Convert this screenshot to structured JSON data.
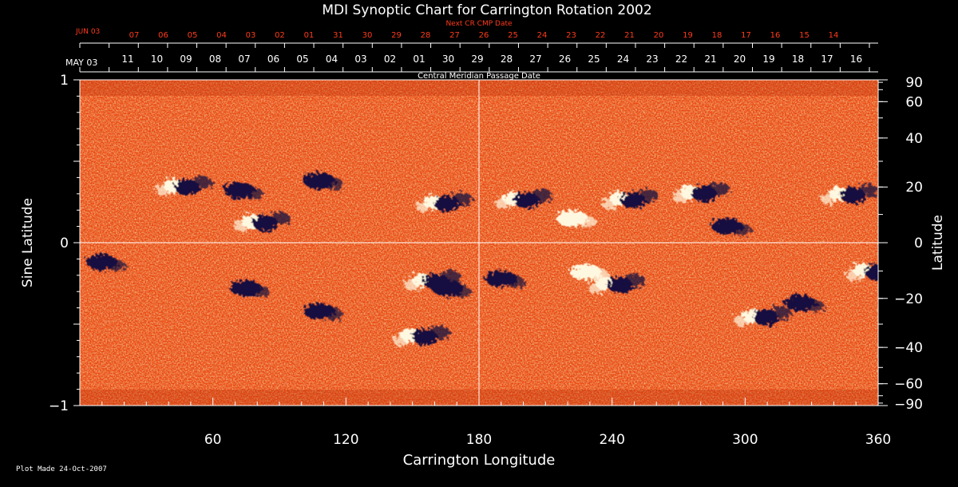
{
  "colors": {
    "background": "#000000",
    "axis": "#ffffff",
    "next_dates": "#ff3b1a",
    "field_neutral": "#f04a10",
    "field_positive": "#fff8e0",
    "field_negative": "#140a40"
  },
  "chart_data": {
    "type": "heatmap",
    "title": "MDI Synoptic Chart for Carrington Rotation 2002",
    "xlabel": "Carrington Longitude",
    "ylabel_left": "Sine Latitude",
    "ylabel_right": "Latitude",
    "top_axis_title": "Central Meridian Passage Date",
    "next_axis_title": "Next CR CMP Date",
    "xlim": [
      0,
      360
    ],
    "ylim": [
      -1,
      1
    ],
    "x_ticks": [
      60,
      120,
      180,
      240,
      300,
      360
    ],
    "y_ticks_left": [
      "1",
      "0",
      "−1"
    ],
    "y_ticks_right": [
      {
        "label": "90",
        "deg": 90
      },
      {
        "label": "60",
        "deg": 60
      },
      {
        "label": "40",
        "deg": 40
      },
      {
        "label": "20",
        "deg": 20
      },
      {
        "label": "0",
        "deg": 0
      },
      {
        "label": "−20",
        "deg": -20
      },
      {
        "label": "−40",
        "deg": -40
      },
      {
        "label": "−60",
        "deg": -60
      },
      {
        "label": "−90",
        "deg": -90
      }
    ],
    "cmp_start_label": "MAY 03",
    "cmp_dates": [
      "11",
      "10",
      "09",
      "08",
      "07",
      "06",
      "05",
      "04",
      "03",
      "02",
      "01",
      "30",
      "29",
      "28",
      "27",
      "26",
      "25",
      "24",
      "23",
      "22",
      "21",
      "20",
      "19",
      "18",
      "17",
      "16"
    ],
    "next_start_label": "JUN 03",
    "next_dates": [
      "07",
      "06",
      "05",
      "04",
      "03",
      "02",
      "01",
      "31",
      "30",
      "29",
      "28",
      "27",
      "26",
      "25",
      "24",
      "23",
      "22",
      "21",
      "20",
      "19",
      "18",
      "17",
      "16",
      "15",
      "14"
    ],
    "active_regions": [
      {
        "lon": 45,
        "sinlat": 0.35,
        "polarity": "mixed"
      },
      {
        "lon": 80,
        "sinlat": 0.13,
        "polarity": "mixed"
      },
      {
        "lon": 72,
        "sinlat": 0.32,
        "polarity": "negative"
      },
      {
        "lon": 108,
        "sinlat": 0.38,
        "polarity": "negative"
      },
      {
        "lon": 162,
        "sinlat": 0.25,
        "polarity": "mixed"
      },
      {
        "lon": 198,
        "sinlat": 0.27,
        "polarity": "mixed"
      },
      {
        "lon": 222,
        "sinlat": 0.15,
        "polarity": "positive"
      },
      {
        "lon": 246,
        "sinlat": 0.27,
        "polarity": "mixed"
      },
      {
        "lon": 278,
        "sinlat": 0.31,
        "polarity": "mixed"
      },
      {
        "lon": 292,
        "sinlat": 0.1,
        "polarity": "negative"
      },
      {
        "lon": 345,
        "sinlat": 0.3,
        "polarity": "mixed"
      },
      {
        "lon": 157,
        "sinlat": -0.23,
        "polarity": "mixed"
      },
      {
        "lon": 166,
        "sinlat": -0.28,
        "polarity": "negative"
      },
      {
        "lon": 190,
        "sinlat": -0.22,
        "polarity": "negative"
      },
      {
        "lon": 240,
        "sinlat": -0.25,
        "polarity": "mixed"
      },
      {
        "lon": 228,
        "sinlat": -0.18,
        "polarity": "positive"
      },
      {
        "lon": 75,
        "sinlat": -0.28,
        "polarity": "negative"
      },
      {
        "lon": 108,
        "sinlat": -0.42,
        "polarity": "negative"
      },
      {
        "lon": 152,
        "sinlat": -0.57,
        "polarity": "mixed"
      },
      {
        "lon": 306,
        "sinlat": -0.45,
        "polarity": "mixed"
      },
      {
        "lon": 325,
        "sinlat": -0.37,
        "polarity": "negative"
      },
      {
        "lon": 356,
        "sinlat": -0.17,
        "polarity": "mixed"
      },
      {
        "lon": 10,
        "sinlat": -0.12,
        "polarity": "negative"
      }
    ]
  },
  "footer": {
    "plot_made": "Plot Made 24-Oct-2007"
  }
}
